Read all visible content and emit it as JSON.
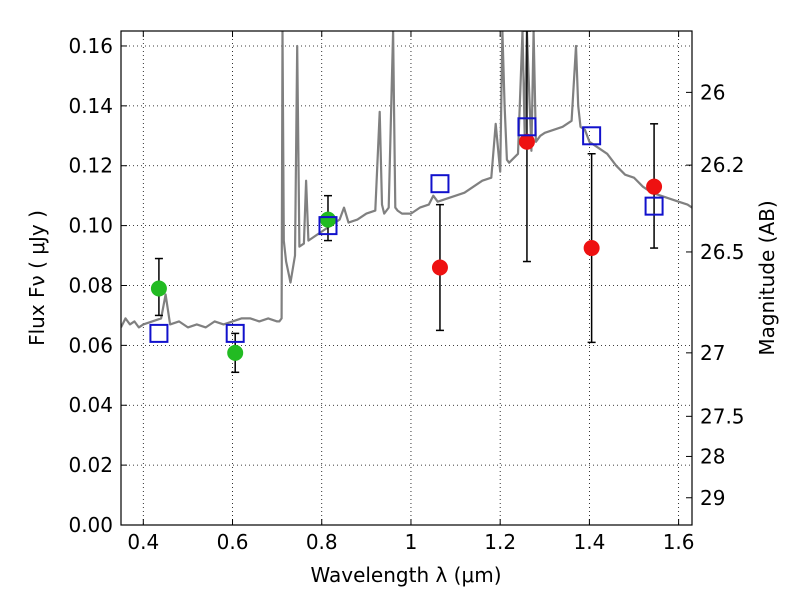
{
  "chart_data": {
    "type": "scatter",
    "title": "",
    "xlabel": "Wavelength  λ (μm)",
    "ylabel_left": "Flux  Fν  ( μJy )",
    "ylabel_right": "Magnitude (AB)",
    "xlim": [
      0.35,
      1.63
    ],
    "ylim": [
      0.0,
      0.165
    ],
    "grid": true,
    "grid_style": "dotted",
    "x_ticks": [
      0.4,
      0.6,
      0.8,
      1.0,
      1.2,
      1.4,
      1.6
    ],
    "x_tick_labels": [
      "0.4",
      "0.6",
      "0.8",
      "1",
      "1.2",
      "1.4",
      "1.6"
    ],
    "y_ticks": [
      0.0,
      0.02,
      0.04,
      0.06,
      0.08,
      0.1,
      0.12,
      0.14,
      0.16
    ],
    "y_tick_labels": [
      "0.00",
      "0.02",
      "0.04",
      "0.06",
      "0.08",
      "0.10",
      "0.12",
      "0.14",
      "0.16"
    ],
    "right_ticks": [
      {
        "label": "26",
        "flux": 0.1445
      },
      {
        "label": "26.2",
        "flux": 0.1202
      },
      {
        "label": "26.5",
        "flux": 0.0912
      },
      {
        "label": "27",
        "flux": 0.0575
      },
      {
        "label": "27.5",
        "flux": 0.0363
      },
      {
        "label": "28",
        "flux": 0.0229
      },
      {
        "label": "29",
        "flux": 0.0091
      }
    ],
    "series": [
      {
        "marker": "circle",
        "color": "#22bb22",
        "points": [
          {
            "x": 0.435,
            "y": 0.079,
            "ylo": 0.07,
            "yhi": 0.089
          },
          {
            "x": 0.606,
            "y": 0.0575,
            "ylo": 0.051,
            "yhi": 0.064
          },
          {
            "x": 0.814,
            "y": 0.102,
            "ylo": 0.095,
            "yhi": 0.11
          }
        ]
      },
      {
        "marker": "circle",
        "color": "#ee1111",
        "points": [
          {
            "x": 1.065,
            "y": 0.086,
            "ylo": 0.065,
            "yhi": 0.107
          },
          {
            "x": 1.26,
            "y": 0.128,
            "ylo": 0.088,
            "yhi": 0.165
          },
          {
            "x": 1.405,
            "y": 0.0925,
            "ylo": 0.061,
            "yhi": 0.124
          },
          {
            "x": 1.545,
            "y": 0.113,
            "ylo": 0.0925,
            "yhi": 0.134
          }
        ]
      },
      {
        "marker": "square-open",
        "color": "#1111cc",
        "points": [
          {
            "x": 0.435,
            "y": 0.064
          },
          {
            "x": 0.606,
            "y": 0.064
          },
          {
            "x": 0.814,
            "y": 0.1
          },
          {
            "x": 1.065,
            "y": 0.114
          },
          {
            "x": 1.26,
            "y": 0.133
          },
          {
            "x": 1.405,
            "y": 0.13
          },
          {
            "x": 1.545,
            "y": 0.1065
          }
        ]
      }
    ],
    "spectrum": {
      "color": "#808080",
      "x": [
        0.35,
        0.36,
        0.37,
        0.38,
        0.39,
        0.4,
        0.42,
        0.44,
        0.45,
        0.46,
        0.48,
        0.5,
        0.52,
        0.54,
        0.56,
        0.58,
        0.6,
        0.62,
        0.64,
        0.66,
        0.68,
        0.7,
        0.705,
        0.71,
        0.712,
        0.715,
        0.72,
        0.73,
        0.74,
        0.745,
        0.75,
        0.76,
        0.765,
        0.77,
        0.78,
        0.79,
        0.8,
        0.82,
        0.84,
        0.85,
        0.86,
        0.88,
        0.9,
        0.92,
        0.93,
        0.935,
        0.94,
        0.95,
        0.96,
        0.962,
        0.965,
        0.97,
        0.98,
        1.0,
        1.02,
        1.04,
        1.05,
        1.06,
        1.08,
        1.1,
        1.12,
        1.14,
        1.16,
        1.18,
        1.19,
        1.2,
        1.205,
        1.21,
        1.215,
        1.22,
        1.24,
        1.25,
        1.255,
        1.26,
        1.27,
        1.275,
        1.28,
        1.29,
        1.3,
        1.32,
        1.34,
        1.36,
        1.37,
        1.375,
        1.38,
        1.39,
        1.4,
        1.42,
        1.44,
        1.46,
        1.48,
        1.5,
        1.52,
        1.54,
        1.56,
        1.58,
        1.6,
        1.62,
        1.63
      ],
      "y": [
        0.066,
        0.069,
        0.067,
        0.068,
        0.066,
        0.067,
        0.068,
        0.069,
        0.077,
        0.067,
        0.068,
        0.066,
        0.067,
        0.066,
        0.068,
        0.067,
        0.068,
        0.069,
        0.069,
        0.068,
        0.069,
        0.068,
        0.068,
        0.069,
        0.165,
        0.095,
        0.088,
        0.081,
        0.09,
        0.16,
        0.093,
        0.094,
        0.115,
        0.095,
        0.096,
        0.097,
        0.098,
        0.1,
        0.102,
        0.106,
        0.101,
        0.102,
        0.104,
        0.105,
        0.138,
        0.107,
        0.104,
        0.106,
        0.165,
        0.14,
        0.106,
        0.105,
        0.104,
        0.104,
        0.106,
        0.107,
        0.11,
        0.108,
        0.109,
        0.11,
        0.111,
        0.113,
        0.115,
        0.116,
        0.134,
        0.118,
        0.165,
        0.14,
        0.122,
        0.121,
        0.124,
        0.165,
        0.13,
        0.165,
        0.125,
        0.165,
        0.128,
        0.13,
        0.131,
        0.132,
        0.133,
        0.135,
        0.16,
        0.14,
        0.133,
        0.132,
        0.128,
        0.126,
        0.124,
        0.12,
        0.117,
        0.116,
        0.113,
        0.111,
        0.11,
        0.109,
        0.108,
        0.107,
        0.106
      ]
    }
  }
}
